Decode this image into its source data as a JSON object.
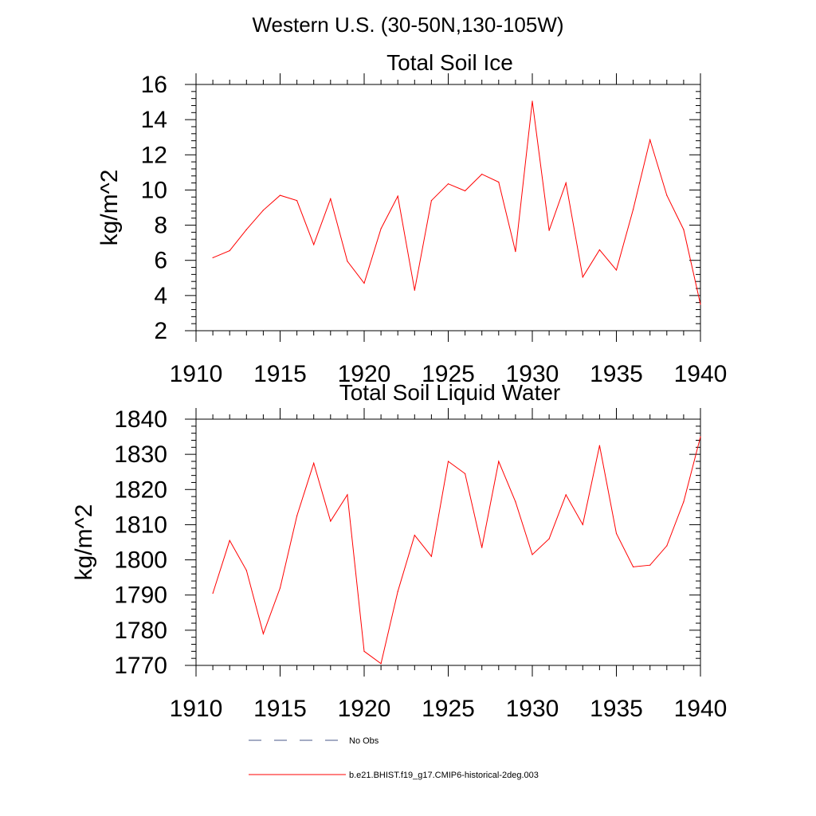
{
  "figure": {
    "title": "Western U.S. (30-50N,130-105W)"
  },
  "legend": {
    "items": [
      {
        "label": "No Obs",
        "color": "#4a5a8a",
        "dash": "dashed"
      },
      {
        "label": "b.e21.BHIST.f19_g17.CMIP6-historical-2deg.003",
        "color": "#ff0000",
        "dash": "solid"
      }
    ]
  },
  "chart_data": [
    {
      "type": "line",
      "title": "Total Soil Ice",
      "xlabel": "",
      "ylabel": "kg/m^2",
      "xlim": [
        1910,
        1940
      ],
      "ylim": [
        2,
        16
      ],
      "xticks": [
        1910,
        1915,
        1920,
        1925,
        1930,
        1935,
        1940
      ],
      "yticks": [
        2,
        4,
        6,
        8,
        10,
        12,
        14,
        16
      ],
      "x": [
        1911,
        1912,
        1913,
        1914,
        1915,
        1916,
        1917,
        1918,
        1919,
        1920,
        1921,
        1922,
        1923,
        1924,
        1925,
        1926,
        1927,
        1928,
        1929,
        1930,
        1931,
        1932,
        1933,
        1934,
        1935,
        1936,
        1937,
        1938,
        1939,
        1940
      ],
      "series": [
        {
          "color": "#ff0000",
          "values": [
            6.15,
            6.55,
            7.75,
            8.85,
            9.7,
            9.4,
            6.9,
            9.5,
            5.95,
            4.7,
            7.8,
            9.65,
            4.3,
            9.4,
            10.35,
            9.95,
            10.9,
            10.45,
            6.5,
            15.05,
            7.7,
            10.4,
            5.05,
            6.6,
            5.45,
            8.9,
            12.85,
            9.7,
            7.75,
            3.5
          ]
        }
      ]
    },
    {
      "type": "line",
      "title": "Total Soil Liquid Water",
      "xlabel": "",
      "ylabel": "kg/m^2",
      "xlim": [
        1910,
        1940
      ],
      "ylim": [
        1770,
        1840
      ],
      "xticks": [
        1910,
        1915,
        1920,
        1925,
        1930,
        1935,
        1940
      ],
      "yticks": [
        1770,
        1780,
        1790,
        1800,
        1810,
        1820,
        1830,
        1840
      ],
      "x": [
        1911,
        1912,
        1913,
        1914,
        1915,
        1916,
        1917,
        1918,
        1919,
        1920,
        1921,
        1922,
        1923,
        1924,
        1925,
        1926,
        1927,
        1928,
        1929,
        1930,
        1931,
        1932,
        1933,
        1934,
        1935,
        1936,
        1937,
        1938,
        1939,
        1940
      ],
      "series": [
        {
          "color": "#ff0000",
          "values": [
            1790.5,
            1805.5,
            1797,
            1779,
            1792,
            1812.5,
            1827.5,
            1811,
            1818.5,
            1774,
            1770.5,
            1791,
            1807,
            1801,
            1828,
            1824.5,
            1803.5,
            1828,
            1816.5,
            1801.5,
            1806,
            1818.5,
            1810,
            1832.5,
            1807.5,
            1798,
            1798.5,
            1804,
            1816.5,
            1835
          ]
        }
      ]
    }
  ]
}
